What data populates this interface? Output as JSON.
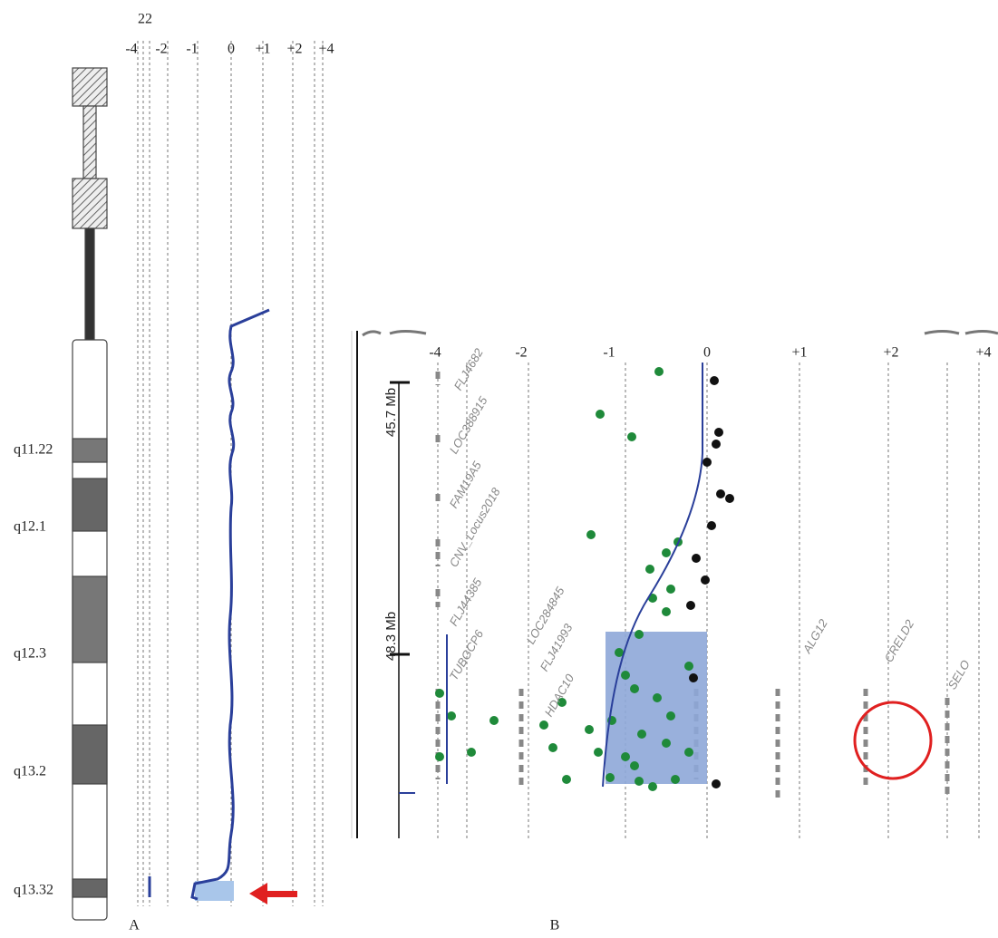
{
  "panel_a": {
    "chromosome": "22",
    "axis_ticks": [
      "-4",
      "-2",
      "-1",
      "0",
      "+1",
      "+2",
      "+4"
    ],
    "bands": [
      "q11.22",
      "q12.1",
      "q12.3",
      "q13.2",
      "q13.32"
    ],
    "label": "A"
  },
  "panel_b": {
    "axis_ticks": [
      "-4",
      "-2",
      "-1",
      "0",
      "+1",
      "+2",
      "+4"
    ],
    "scale": [
      "45.7 Mb",
      "48.3 Mb"
    ],
    "genes": [
      "FLJ4682",
      "LOC388915",
      "FAM19A5",
      "CNV_Locus2018",
      "FLJ44385",
      "LOC284845",
      "FLJ41993",
      "HDAC10",
      "TUBGCP6",
      "CRELD2",
      "ALG12",
      "SELO"
    ],
    "label": "B"
  }
}
